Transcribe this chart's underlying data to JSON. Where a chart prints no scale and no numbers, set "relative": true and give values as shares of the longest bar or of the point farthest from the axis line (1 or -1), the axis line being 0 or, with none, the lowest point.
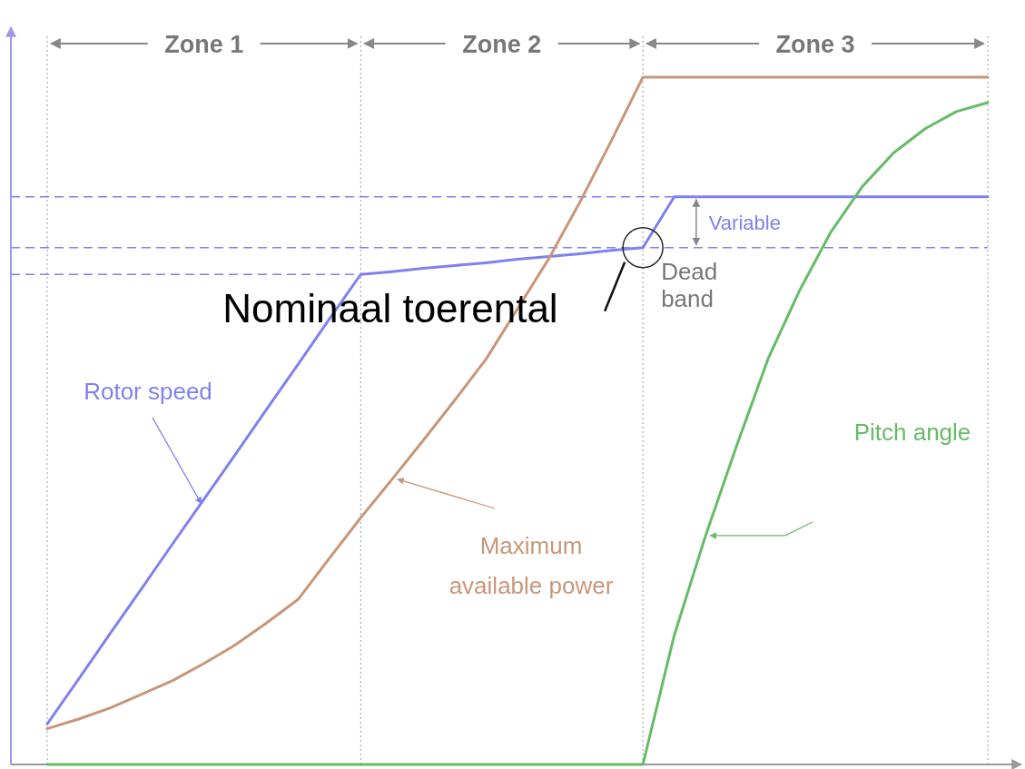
{
  "chart_data": {
    "type": "line",
    "relative": true,
    "categories": [
      null,
      null,
      null,
      null,
      null,
      null,
      null,
      null,
      null,
      null,
      null,
      null,
      null,
      null,
      null,
      null,
      null,
      null,
      null,
      null,
      null,
      null,
      null,
      null,
      null,
      null,
      null,
      null,
      null,
      null,
      null
    ],
    "series": [
      {
        "name": "Rotor speed",
        "color": "#8080f0",
        "values": [
          0.059,
          0.124,
          0.19,
          0.255,
          0.321,
          0.386,
          0.451,
          0.517,
          0.582,
          0.648,
          0.713,
          0.717,
          0.722,
          0.726,
          0.73,
          0.735,
          0.739,
          0.743,
          0.748,
          0.752,
          0.826,
          0.826,
          0.826,
          0.826,
          0.826,
          0.826,
          0.826,
          0.826,
          0.826,
          0.826,
          0.826
        ]
      },
      {
        "name": "Maximum available power",
        "color": "#c8967a",
        "values": [
          0.052,
          0.066,
          0.082,
          0.102,
          0.122,
          0.147,
          0.174,
          0.206,
          0.24,
          0.3,
          0.359,
          0.415,
          0.472,
          0.53,
          0.59,
          0.663,
          0.736,
          0.819,
          0.908,
          1,
          1,
          1,
          1,
          1,
          1,
          1,
          1,
          1,
          1,
          1,
          1
        ]
      },
      {
        "name": "Pitch angle",
        "color": "#66bb66",
        "values": [
          0,
          0,
          0,
          0,
          0,
          0,
          0,
          0,
          0,
          0,
          0,
          0,
          0,
          0,
          0,
          0,
          0,
          0,
          0,
          0,
          0.188,
          0.333,
          0.465,
          0.591,
          0.69,
          0.775,
          0.841,
          0.89,
          0.925,
          0.95,
          0.963
        ]
      }
    ],
    "ref_lines": [
      {
        "axis": "y",
        "value": 0.826,
        "color": "#8080f0",
        "line_style": "dashed"
      },
      {
        "axis": "y",
        "value": 0.752,
        "color": "#8080f0",
        "line_style": "dashed"
      },
      {
        "axis": "y",
        "value": 0.713,
        "color": "#8080f0",
        "line_style": "dashed"
      }
    ],
    "annotations": [
      "Zone 1",
      "Zone 2",
      "Zone 3",
      "Variable",
      "Dead band",
      "Nominaal toerental"
    ],
    "grid": "x"
  }
}
